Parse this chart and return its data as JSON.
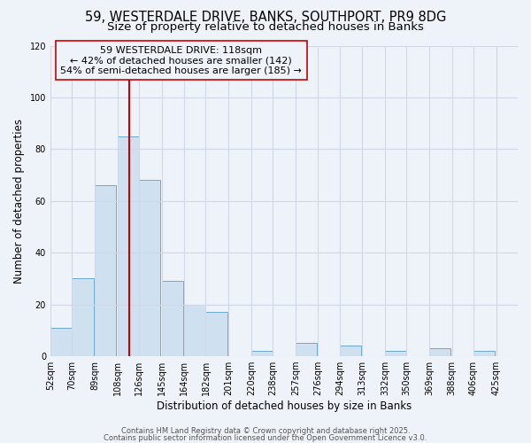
{
  "title_line1": "59, WESTERDALE DRIVE, BANKS, SOUTHPORT, PR9 8DG",
  "title_line2": "Size of property relative to detached houses in Banks",
  "xlabel": "Distribution of detached houses by size in Banks",
  "ylabel": "Number of detached properties",
  "bar_left_edges": [
    52,
    70,
    89,
    108,
    126,
    145,
    164,
    182,
    201,
    220,
    238,
    257,
    276,
    294,
    313,
    332,
    350,
    369,
    388,
    406
  ],
  "bar_heights": [
    11,
    30,
    66,
    85,
    68,
    29,
    20,
    17,
    0,
    2,
    0,
    5,
    0,
    4,
    0,
    2,
    0,
    3,
    0,
    2
  ],
  "bin_width": 18,
  "bar_facecolor": "#cfe0f0",
  "bar_edgecolor": "#6aaad4",
  "vline_x": 118,
  "vline_color": "#cc0000",
  "annotation_text": "59 WESTERDALE DRIVE: 118sqm\n← 42% of detached houses are smaller (142)\n54% of semi-detached houses are larger (185) →",
  "ylim": [
    0,
    120
  ],
  "yticks": [
    0,
    20,
    40,
    60,
    80,
    100,
    120
  ],
  "xtick_labels": [
    "52sqm",
    "70sqm",
    "89sqm",
    "108sqm",
    "126sqm",
    "145sqm",
    "164sqm",
    "182sqm",
    "201sqm",
    "220sqm",
    "238sqm",
    "257sqm",
    "276sqm",
    "294sqm",
    "313sqm",
    "332sqm",
    "350sqm",
    "369sqm",
    "388sqm",
    "406sqm",
    "425sqm"
  ],
  "xtick_positions": [
    52,
    70,
    89,
    108,
    126,
    145,
    164,
    182,
    201,
    220,
    238,
    257,
    276,
    294,
    313,
    332,
    350,
    369,
    388,
    406,
    425
  ],
  "grid_color": "#d0d8e8",
  "background_color": "#eef2f9",
  "footer_text1": "Contains HM Land Registry data © Crown copyright and database right 2025.",
  "footer_text2": "Contains public sector information licensed under the Open Government Licence v3.0.",
  "title_fontsize": 10.5,
  "subtitle_fontsize": 9.5,
  "axis_label_fontsize": 8.5,
  "tick_fontsize": 7,
  "annotation_fontsize": 8,
  "footer_fontsize": 6
}
